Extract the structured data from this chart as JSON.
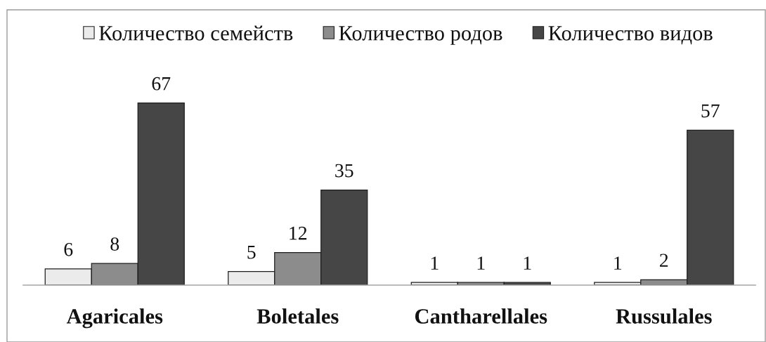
{
  "chart_data": {
    "type": "bar",
    "categories": [
      "Agaricales",
      "Boletales",
      "Cantharellales",
      "Russulales"
    ],
    "series": [
      {
        "name": "Количество семейств",
        "color": "#ebebeb",
        "values": [
          6,
          5,
          1,
          1
        ]
      },
      {
        "name": "Количество родов",
        "color": "#8c8c8c",
        "values": [
          8,
          12,
          1,
          2
        ]
      },
      {
        "name": "Количество видов",
        "color": "#464646",
        "values": [
          67,
          35,
          1,
          57
        ]
      }
    ],
    "data_labels": true,
    "legend": "top",
    "tick_labels": "x"
  }
}
